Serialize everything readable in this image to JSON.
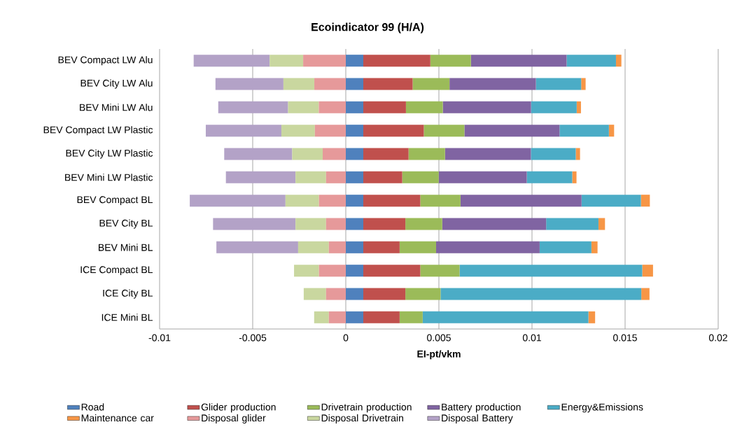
{
  "chart_data": {
    "type": "bar",
    "orientation": "horizontal",
    "stacked": true,
    "title": "Ecoindicator 99 (H/A)",
    "xlabel": "EI-pt/vkm",
    "categories": [
      "BEV Compact LW Alu",
      "BEV City LW Alu",
      "BEV Mini LW Alu",
      "BEV Compact LW Plastic",
      "BEV City LW Plastic",
      "BEV Mini LW Plastic",
      "BEV Compact BL",
      "BEV City BL",
      "BEV Mini BL",
      "ICE Compact BL",
      "ICE City BL",
      "ICE Mini BL"
    ],
    "series": [
      {
        "name": "Road",
        "color": "#4f81bd",
        "values": [
          0.00094,
          0.00094,
          0.00094,
          0.00094,
          0.00094,
          0.00094,
          0.00094,
          0.00094,
          0.00094,
          0.00094,
          0.00094,
          0.00094
        ]
      },
      {
        "name": "Glider production",
        "color": "#c0504d",
        "values": [
          0.0036,
          0.00265,
          0.00229,
          0.00325,
          0.00243,
          0.00209,
          0.00306,
          0.00226,
          0.00195,
          0.00306,
          0.00226,
          0.00195
        ]
      },
      {
        "name": "Drivetrain production",
        "color": "#9bbb59",
        "values": [
          0.00218,
          0.00198,
          0.00198,
          0.00218,
          0.00196,
          0.00196,
          0.00216,
          0.00198,
          0.00196,
          0.00211,
          0.00189,
          0.00124
        ]
      },
      {
        "name": "Battery production",
        "color": "#8064a2",
        "values": [
          0.00514,
          0.00464,
          0.00474,
          0.00511,
          0.00461,
          0.00473,
          0.0065,
          0.00558,
          0.00556,
          0,
          0,
          0
        ]
      },
      {
        "name": "Energy&Emissions",
        "color": "#4bacc6",
        "values": [
          0.00265,
          0.00243,
          0.00245,
          0.00265,
          0.00241,
          0.00244,
          0.00319,
          0.00281,
          0.00278,
          0.00981,
          0.01078,
          0.0089
        ]
      },
      {
        "name": "Maintenance car",
        "color": "#f79646",
        "values": [
          0.00029,
          0.00024,
          0.00023,
          0.00028,
          0.00023,
          0.00023,
          0.00048,
          0.00035,
          0.00033,
          0.00058,
          0.00044,
          0.00036
        ]
      },
      {
        "name": "Disposal glider",
        "color": "#e6999a",
        "values": [
          -0.00229,
          -0.00169,
          -0.00145,
          -0.00166,
          -0.00124,
          -0.00106,
          -0.00144,
          -0.00106,
          -0.00091,
          -0.00144,
          -0.00106,
          -0.00091
        ]
      },
      {
        "name": "Disposal Drivetrain",
        "color": "#c9d79f",
        "values": [
          -0.0018,
          -0.00166,
          -0.00165,
          -0.0018,
          -0.00164,
          -0.00164,
          -0.0018,
          -0.00164,
          -0.00165,
          -0.00134,
          -0.0012,
          -0.00079
        ]
      },
      {
        "name": "Disposal Battery",
        "color": "#b3a2c7",
        "values": [
          -0.00408,
          -0.00365,
          -0.00375,
          -0.00406,
          -0.00365,
          -0.00374,
          -0.00514,
          -0.00443,
          -0.00439,
          0,
          0,
          0
        ]
      }
    ],
    "xlim": [
      -0.01,
      0.02
    ],
    "xticks": [
      -0.01,
      -0.005,
      0,
      0.005,
      0.01,
      0.015,
      0.02
    ],
    "grid": "x",
    "legend": "bottom"
  }
}
